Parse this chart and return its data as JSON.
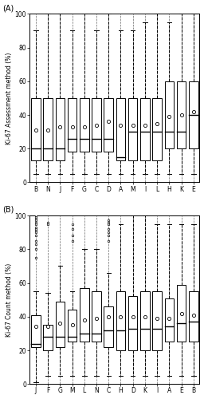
{
  "panel_A": {
    "title": "(A)",
    "ylabel": "Ki-67 Assessment method (%)",
    "categories": [
      "B",
      "N",
      "J",
      "F",
      "G",
      "C",
      "D",
      "A",
      "M",
      "I",
      "L",
      "H",
      "K",
      "E"
    ],
    "boxes": [
      {
        "q1": 13,
        "median": 20,
        "q3": 50,
        "whislo": 5,
        "whishi": 90,
        "mean": 31,
        "fliers": []
      },
      {
        "q1": 13,
        "median": 20,
        "q3": 50,
        "whislo": 5,
        "whishi": 100,
        "mean": 31,
        "fliers": []
      },
      {
        "q1": 13,
        "median": 20,
        "q3": 50,
        "whislo": 5,
        "whishi": 100,
        "mean": 33,
        "fliers": []
      },
      {
        "q1": 18,
        "median": 26,
        "q3": 50,
        "whislo": 5,
        "whishi": 90,
        "mean": 33,
        "fliers": []
      },
      {
        "q1": 18,
        "median": 26,
        "q3": 50,
        "whislo": 5,
        "whishi": 100,
        "mean": 33,
        "fliers": []
      },
      {
        "q1": 18,
        "median": 26,
        "q3": 50,
        "whislo": 5,
        "whishi": 90,
        "mean": 34,
        "fliers": []
      },
      {
        "q1": 18,
        "median": 26,
        "q3": 50,
        "whislo": 5,
        "whishi": 100,
        "mean": 36,
        "fliers": []
      },
      {
        "q1": 13,
        "median": 15,
        "q3": 50,
        "whislo": 5,
        "whishi": 90,
        "mean": 34,
        "fliers": []
      },
      {
        "q1": 13,
        "median": 30,
        "q3": 50,
        "whislo": 5,
        "whishi": 90,
        "mean": 34,
        "fliers": []
      },
      {
        "q1": 13,
        "median": 30,
        "q3": 50,
        "whislo": 5,
        "whishi": 95,
        "mean": 34,
        "fliers": []
      },
      {
        "q1": 13,
        "median": 30,
        "q3": 50,
        "whislo": 5,
        "whishi": 100,
        "mean": 35,
        "fliers": []
      },
      {
        "q1": 20,
        "median": 30,
        "q3": 60,
        "whislo": 5,
        "whishi": 95,
        "mean": 39,
        "fliers": []
      },
      {
        "q1": 20,
        "median": 30,
        "q3": 60,
        "whislo": 5,
        "whishi": 100,
        "mean": 40,
        "fliers": []
      },
      {
        "q1": 20,
        "median": 40,
        "q3": 60,
        "whislo": 5,
        "whishi": 100,
        "mean": 42,
        "fliers": []
      }
    ]
  },
  "panel_B": {
    "title": "(B)",
    "ylabel": "Ki-67 Count method (%)",
    "categories": [
      "J",
      "F",
      "G",
      "M",
      "L",
      "N",
      "C",
      "H",
      "D",
      "K",
      "I",
      "A",
      "E",
      "B"
    ],
    "boxes": [
      {
        "q1": 22,
        "median": 24,
        "q3": 41,
        "whislo": 1,
        "whishi": 55,
        "mean": 34,
        "fliers": [
          75,
          80,
          83,
          85,
          88,
          90,
          91,
          92,
          93,
          95,
          96,
          97,
          98,
          99,
          100,
          100,
          100
        ]
      },
      {
        "q1": 20,
        "median": 28,
        "q3": 35,
        "whislo": 5,
        "whishi": 54,
        "mean": 34,
        "fliers": [
          95,
          96
        ]
      },
      {
        "q1": 22,
        "median": 28,
        "q3": 49,
        "whislo": 5,
        "whishi": 70,
        "mean": 36,
        "fliers": []
      },
      {
        "q1": 25,
        "median": 28,
        "q3": 44,
        "whislo": 5,
        "whishi": 55,
        "mean": 35,
        "fliers": [
          85,
          88,
          92,
          95
        ]
      },
      {
        "q1": 25,
        "median": 30,
        "q3": 57,
        "whislo": 5,
        "whishi": 80,
        "mean": 38,
        "fliers": []
      },
      {
        "q1": 25,
        "median": 30,
        "q3": 55,
        "whislo": 5,
        "whishi": 80,
        "mean": 39,
        "fliers": []
      },
      {
        "q1": 22,
        "median": 32,
        "q3": 46,
        "whislo": 5,
        "whishi": 66,
        "mean": 40,
        "fliers": [
          85,
          88,
          90,
          92,
          95,
          96,
          97
        ]
      },
      {
        "q1": 20,
        "median": 32,
        "q3": 55,
        "whislo": 5,
        "whishi": 95,
        "mean": 40,
        "fliers": []
      },
      {
        "q1": 20,
        "median": 33,
        "q3": 52,
        "whislo": 5,
        "whishi": 100,
        "mean": 40,
        "fliers": []
      },
      {
        "q1": 20,
        "median": 33,
        "q3": 55,
        "whislo": 5,
        "whishi": 100,
        "mean": 40,
        "fliers": []
      },
      {
        "q1": 20,
        "median": 33,
        "q3": 55,
        "whislo": 5,
        "whishi": 95,
        "mean": 39,
        "fliers": []
      },
      {
        "q1": 25,
        "median": 34,
        "q3": 51,
        "whislo": 5,
        "whishi": 95,
        "mean": 39,
        "fliers": []
      },
      {
        "q1": 25,
        "median": 36,
        "q3": 59,
        "whislo": 5,
        "whishi": 95,
        "mean": 42,
        "fliers": []
      },
      {
        "q1": 25,
        "median": 37,
        "q3": 55,
        "whislo": 5,
        "whishi": 95,
        "mean": 41,
        "fliers": []
      }
    ]
  },
  "ylim": [
    0,
    100
  ],
  "yticks": [
    0,
    20,
    40,
    60,
    80,
    100
  ],
  "figure_size": [
    2.56,
    5.0
  ],
  "dpi": 100,
  "bg_color": "#f0f0f0"
}
